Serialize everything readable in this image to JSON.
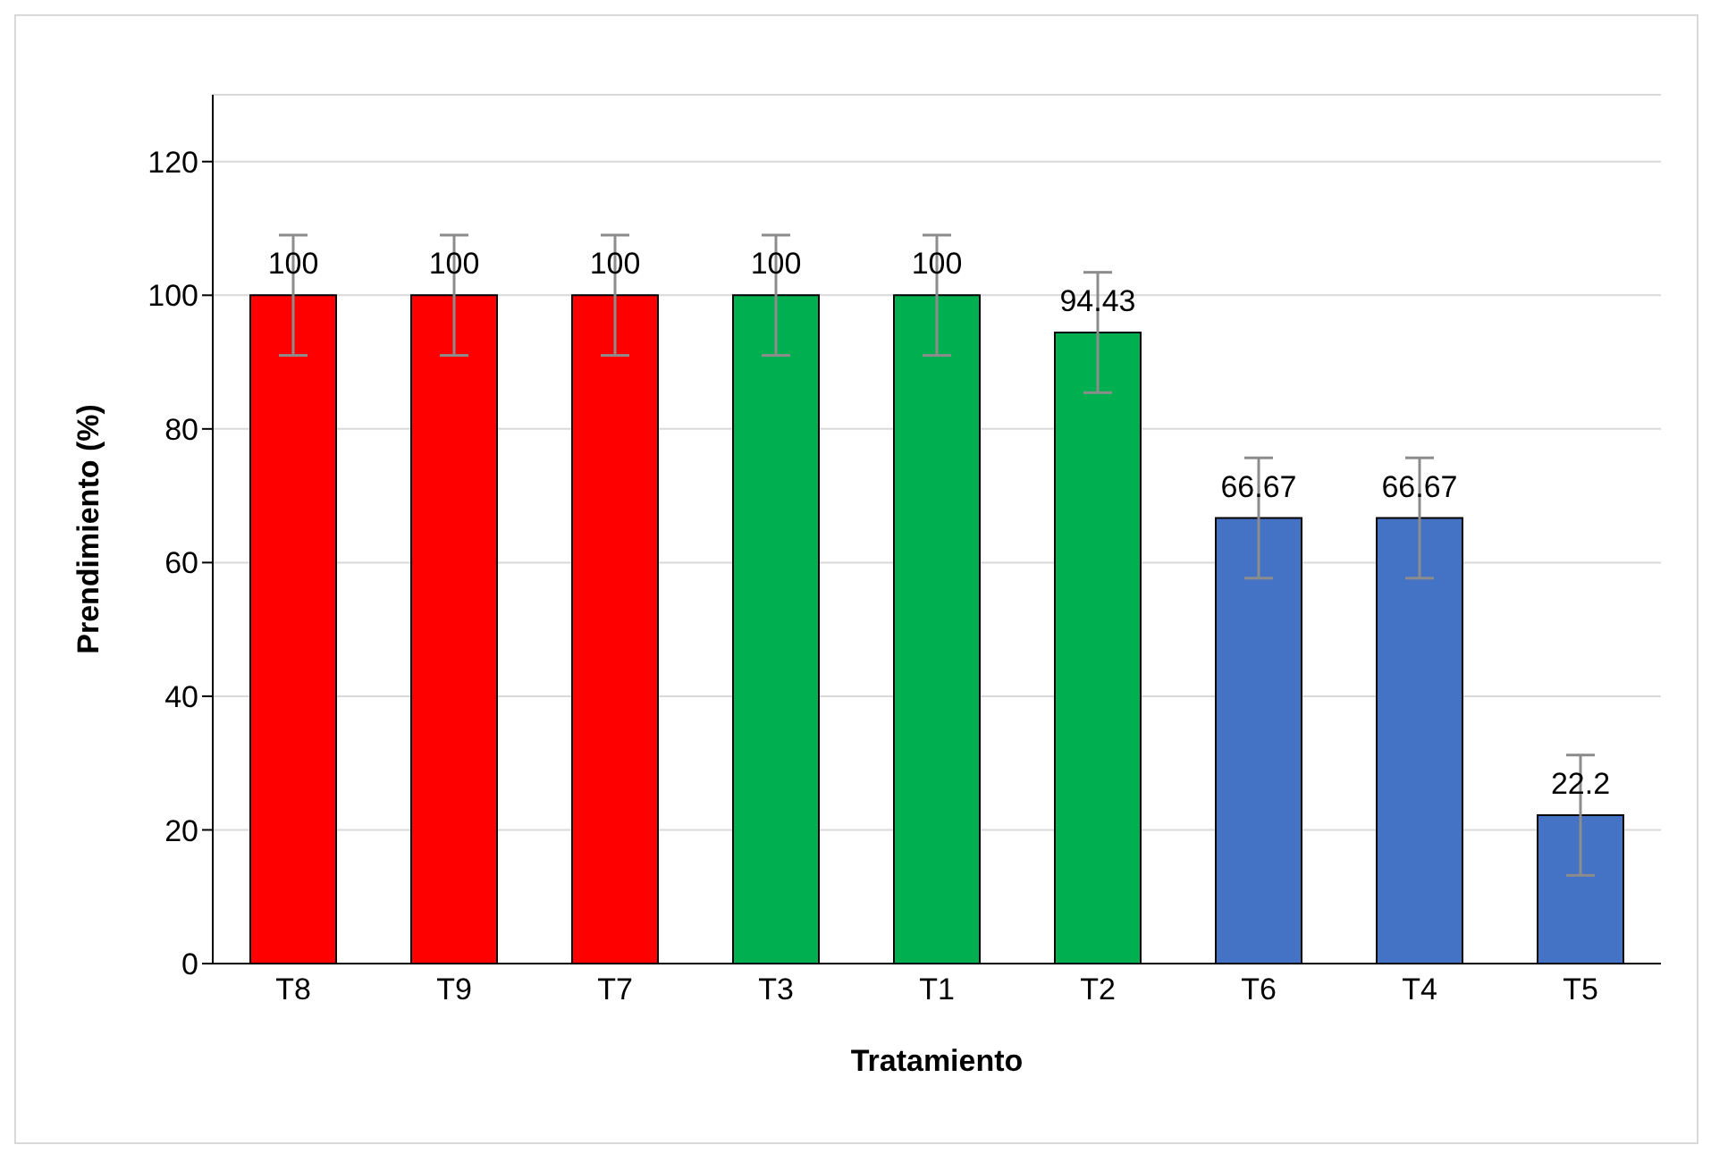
{
  "chart_data": {
    "type": "bar",
    "xlabel": "Tratamiento",
    "ylabel": "Prendimiento (%)",
    "categories": [
      "T8",
      "T9",
      "T7",
      "T3",
      "T1",
      "T2",
      "T6",
      "T4",
      "T5"
    ],
    "values": [
      100,
      100,
      100,
      100,
      100,
      94.43,
      66.67,
      66.67,
      22.2
    ],
    "colors": [
      "#ff0000",
      "#ff0000",
      "#ff0000",
      "#00b050",
      "#00b050",
      "#00b050",
      "#4472c4",
      "#4472c4",
      "#4472c4"
    ],
    "errors": [
      9,
      9,
      9,
      9,
      9,
      9,
      9,
      9,
      9
    ],
    "data_labels": true,
    "ylim": [
      0,
      130
    ],
    "yticks": [
      0,
      20,
      40,
      60,
      80,
      100,
      120
    ],
    "grid": "y",
    "legend": false
  }
}
